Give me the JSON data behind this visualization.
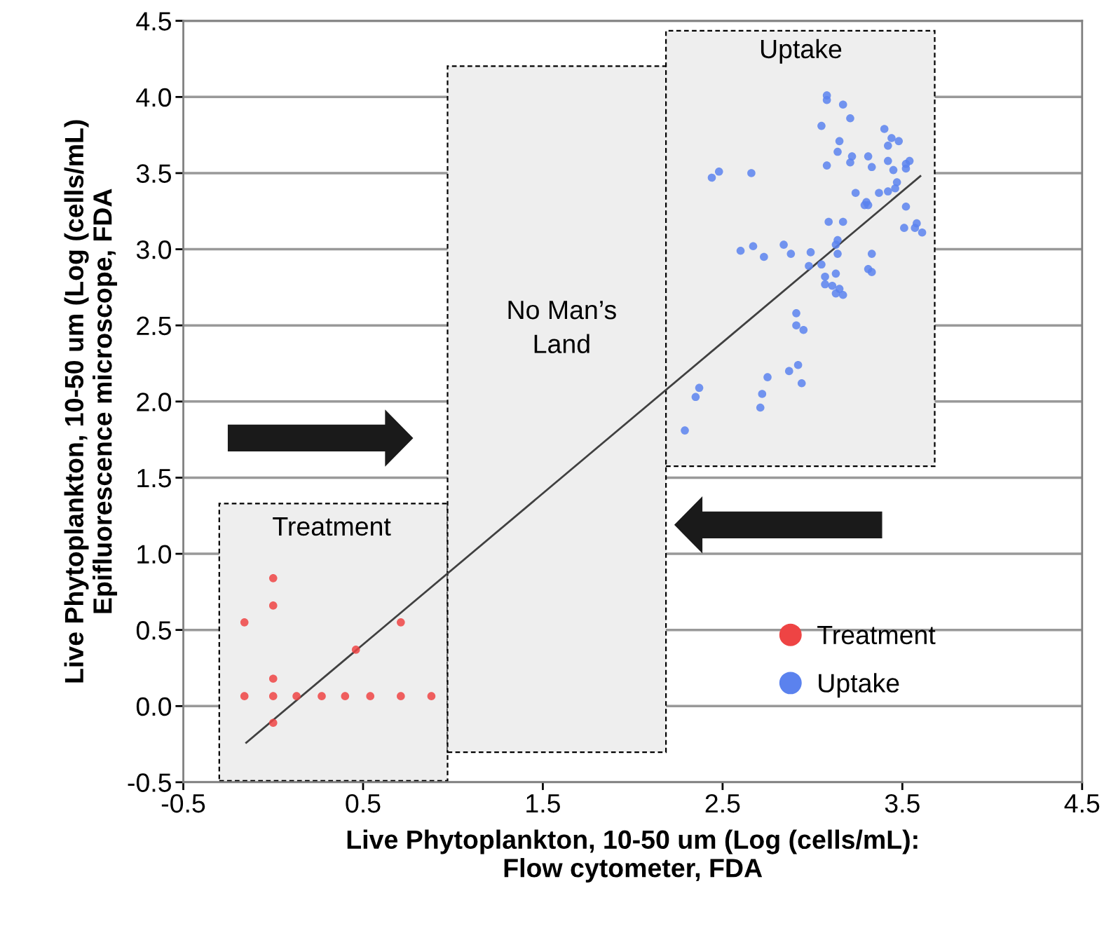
{
  "chart_data": {
    "type": "scatter",
    "xlabel": "Live Phytoplankton, 10-50 um (Log (cells/mL):\nFlow cytometer, FDA",
    "ylabel": "Live Phytoplankton, 10-50 um (Log (cells/mL)\nEpifluorescence microscope, FDA",
    "xlim": [
      -0.5,
      4.5
    ],
    "ylim": [
      -0.5,
      4.5
    ],
    "xticks": [
      -0.5,
      0.5,
      1.5,
      2.5,
      3.5,
      4.5
    ],
    "yticks": [
      {
        "value": -0.5,
        "label": "-0.5"
      },
      {
        "value": 0,
        "label": "0.0"
      },
      {
        "value": 0.5,
        "label": "0.5"
      },
      {
        "value": 1,
        "label": "1.0"
      },
      {
        "value": 1.5,
        "label": "1.5"
      },
      {
        "value": 2,
        "label": "2.0"
      },
      {
        "value": 2.5,
        "label": "2.5"
      },
      {
        "value": 3,
        "label": "3.0"
      },
      {
        "value": 3.5,
        "label": "3.5"
      },
      {
        "value": 4,
        "label": "4.0"
      },
      {
        "value": 4.5,
        "label": "4.5"
      }
    ],
    "grid": "y",
    "legend": "bottom right",
    "marker": "circle",
    "annotations": [
      "Treatment",
      "No Man’s\nLand",
      "Uptake"
    ],
    "series": [
      {
        "name": "Treatment",
        "color": "#ee4444",
        "x": [
          -0.16,
          0.0,
          0.0,
          0.0,
          0.0,
          0.46,
          0.71,
          -0.16,
          0.0,
          0.13,
          0.27,
          0.4,
          0.54,
          0.71,
          0.88
        ],
        "values": [
          0.55,
          0.84,
          0.66,
          0.18,
          -0.11,
          0.37,
          0.55,
          0.065,
          0.065,
          0.065,
          0.065,
          0.065,
          0.065,
          0.065,
          0.065
        ]
      },
      {
        "name": "Uptake",
        "color": "#5b82ee",
        "x": [
          2.29,
          2.35,
          2.37,
          2.71,
          2.72,
          2.75,
          2.87,
          2.92,
          2.94,
          2.91,
          2.91,
          2.95,
          2.6,
          2.67,
          2.73,
          2.84,
          2.88,
          2.99,
          3.14,
          3.13,
          3.05,
          3.14,
          3.33,
          3.07,
          3.13,
          3.31,
          3.33,
          3.07,
          3.11,
          3.15,
          3.13,
          3.17,
          2.98,
          3.08,
          3.08,
          3.17,
          3.21,
          3.05,
          3.4,
          3.15,
          3.44,
          3.48,
          3.42,
          3.14,
          3.22,
          3.31,
          3.21,
          3.42,
          3.54,
          3.52,
          3.08,
          3.33,
          3.45,
          3.52,
          2.48,
          2.66,
          2.44,
          3.47,
          3.46,
          3.42,
          3.24,
          3.37,
          3.3,
          3.29,
          3.31,
          3.52,
          3.09,
          3.17,
          3.58,
          3.57,
          3.51,
          3.61
        ],
        "values": [
          1.81,
          2.03,
          2.09,
          1.96,
          2.05,
          2.16,
          2.2,
          2.24,
          2.12,
          2.58,
          2.5,
          2.47,
          2.99,
          3.02,
          2.95,
          3.03,
          2.97,
          2.98,
          3.06,
          3.03,
          2.9,
          2.97,
          2.97,
          2.82,
          2.84,
          2.87,
          2.85,
          2.77,
          2.76,
          2.74,
          2.71,
          2.7,
          2.89,
          4.01,
          3.98,
          3.95,
          3.86,
          3.81,
          3.79,
          3.71,
          3.73,
          3.71,
          3.68,
          3.64,
          3.61,
          3.61,
          3.57,
          3.58,
          3.58,
          3.56,
          3.55,
          3.54,
          3.52,
          3.53,
          3.51,
          3.5,
          3.47,
          3.44,
          3.4,
          3.38,
          3.37,
          3.37,
          3.31,
          3.29,
          3.29,
          3.28,
          3.18,
          3.18,
          3.17,
          3.14,
          3.14,
          3.11
        ]
      },
      {
        "type": "line",
        "marker": "none",
        "color": "#404040",
        "x": [
          -0.15,
          3.6
        ],
        "values": [
          -0.24,
          3.48
        ]
      }
    ]
  }
}
